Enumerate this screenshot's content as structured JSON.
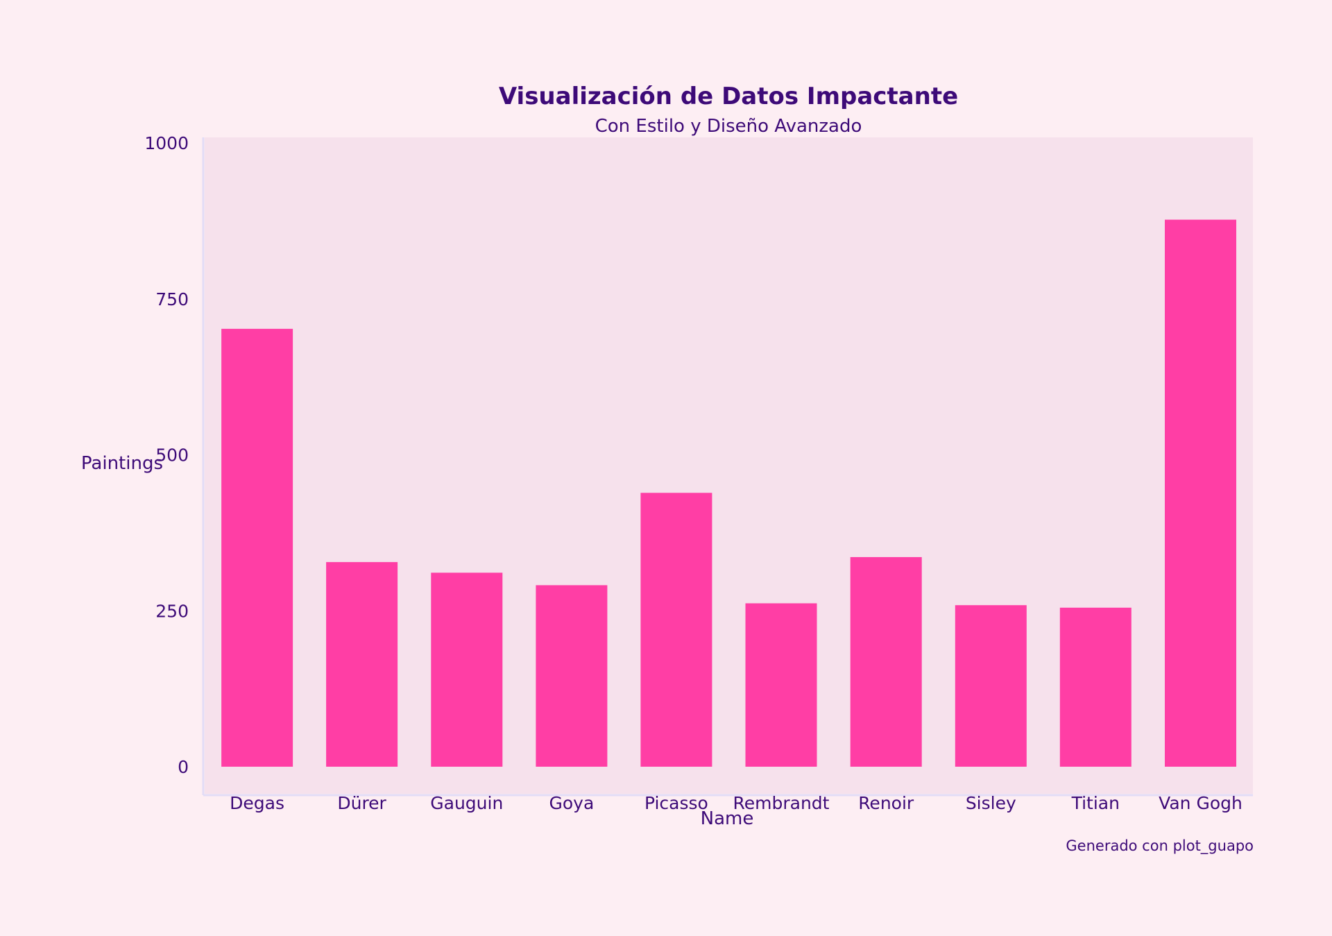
{
  "chart_data": {
    "type": "bar",
    "title": "Visualización de Datos Impactante",
    "subtitle": "Con Estilo y Diseño Avanzado",
    "xlabel": "Name",
    "ylabel": "Paintings",
    "caption": "Generado con plot_guapo",
    "categories": [
      "Degas",
      "Dürer",
      "Gauguin",
      "Goya",
      "Picasso",
      "Rembrandt",
      "Renoir",
      "Sisley",
      "Titian",
      "Van Gogh"
    ],
    "values": [
      702,
      328,
      311,
      291,
      439,
      262,
      336,
      259,
      255,
      877
    ],
    "ylim": [
      0,
      1000
    ],
    "yticks": [
      0,
      250,
      500,
      750,
      1000
    ],
    "grid": false,
    "colors": {
      "background": "#fdeef3",
      "panel": "#f6e1ec",
      "bar": "#ff3ea5",
      "text": "#3d0a78",
      "axis_line": "#e2dcf6"
    }
  }
}
